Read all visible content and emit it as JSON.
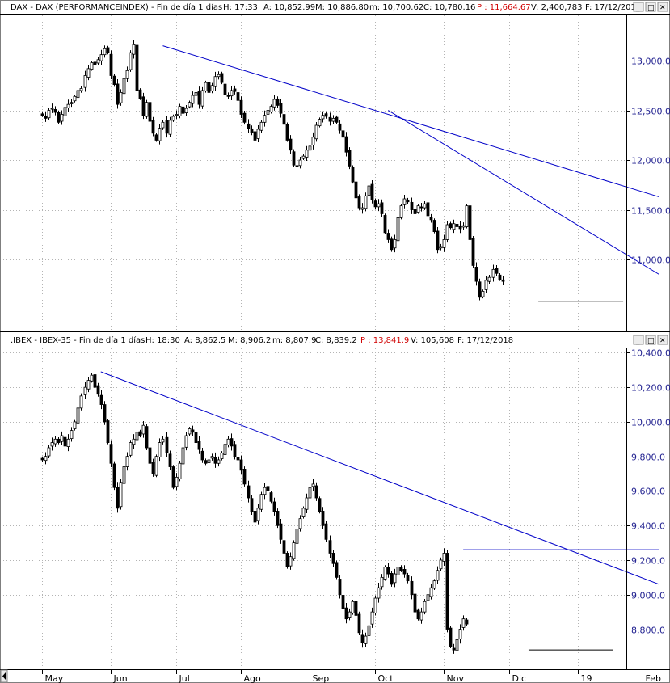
{
  "top_panel": {
    "header": {
      "title": "DAX - DAX (PERFORMANCEINDEX) - Fin de día 1 días",
      "h": "H: 17:33",
      "a": "A: 10,852.99",
      "m": "M: 10,886.80",
      "mm": "m: 10,700.62",
      "c": "C: 10,780.16",
      "p": "P : 11,664.67",
      "v": "V: 2,400,783",
      "f": "F: 17/12/201"
    }
  },
  "bottom_panel": {
    "header": {
      "title": ".IBEX - IBEX-35 - Fin de día 1 días",
      "h": "H: 18:30",
      "a": "A: 8,862.5",
      "m": "M: 8,906.2",
      "mm": "m: 8,807.9",
      "c": "C: 8,839.2",
      "p": "P : 13,841.9",
      "v": "V: 105,608",
      "f": "F: 17/12/2018"
    }
  },
  "window_buttons": {
    "minimize": "_",
    "restore": "□",
    "close": "✕"
  },
  "x_axis": {
    "months": [
      "May",
      "Jun",
      "Jul",
      "Ago",
      "Sep",
      "Oct",
      "Nov",
      "Dic",
      "19",
      "Feb"
    ],
    "month_day_index": [
      0,
      21,
      41,
      61,
      82,
      102,
      123,
      143,
      164,
      184
    ]
  },
  "colors": {
    "candle": "#000000",
    "trendline": "#0000c8",
    "axis_text": "#1f1f8f",
    "p_value": "#d00000"
  },
  "chart_data": [
    {
      "type": "candlestick",
      "title": "DAX - DAX (PERFORMANCEINDEX)",
      "ylim": [
        10350,
        13350
      ],
      "y_ticks": [
        "13,000.0",
        "12,500.0",
        "12,000.0",
        "11,500.0",
        "11,000.0"
      ],
      "y_tick_values": [
        13000,
        12500,
        12000,
        11500,
        11000
      ],
      "close_series": [
        12450,
        12420,
        12500,
        12520,
        12480,
        12380,
        12460,
        12530,
        12560,
        12580,
        12640,
        12700,
        12720,
        12850,
        12920,
        12980,
        12960,
        13010,
        13060,
        13120,
        13080,
        12850,
        12760,
        12560,
        12680,
        12820,
        12900,
        13080,
        13160,
        12700,
        12620,
        12450,
        12580,
        12390,
        12270,
        12200,
        12320,
        12380,
        12270,
        12400,
        12440,
        12460,
        12540,
        12470,
        12520,
        12580,
        12650,
        12680,
        12560,
        12700,
        12780,
        12680,
        12750,
        12840,
        12860,
        12780,
        12660,
        12640,
        12700,
        12690,
        12600,
        12460,
        12380,
        12320,
        12280,
        12200,
        12310,
        12380,
        12450,
        12500,
        12540,
        12610,
        12550,
        12470,
        12360,
        12200,
        12100,
        11950,
        11940,
        12000,
        12040,
        12100,
        12140,
        12230,
        12350,
        12410,
        12450,
        12440,
        12390,
        12420,
        12380,
        12300,
        12230,
        12080,
        11940,
        11780,
        11620,
        11520,
        11520,
        11640,
        11740,
        11600,
        11530,
        11560,
        11460,
        11270,
        11200,
        11100,
        11200,
        11420,
        11540,
        11610,
        11580,
        11500,
        11460,
        11540,
        11520,
        11560,
        11440,
        11400,
        11280,
        11100,
        11130,
        11200,
        11350,
        11320,
        11360,
        11330,
        11310,
        11340,
        11540,
        11200,
        10940,
        10780,
        10620,
        10680,
        10790,
        10820,
        10900,
        10860,
        10800,
        10780
      ],
      "trendlines": [
        {
          "x": [
            37,
            189
          ],
          "y": [
            13150,
            11630
          ]
        },
        {
          "x": [
            106,
            189
          ],
          "y": [
            12500,
            10850
          ]
        }
      ],
      "support_line": {
        "x": [
          152,
          178
        ],
        "y": 10580
      }
    },
    {
      "type": "candlestick",
      "title": ".IBEX - IBEX-35",
      "ylim": [
        8620,
        10430
      ],
      "y_ticks": [
        "10,400.0",
        "10,200.0",
        "10,000.0",
        "9,800.0",
        "9,600.0",
        "9,400.0",
        "9,200.0",
        "9,000.0",
        "8,800.0"
      ],
      "y_tick_values": [
        10400,
        10200,
        10000,
        9800,
        9600,
        9400,
        9200,
        9000,
        8800
      ],
      "close_series": [
        9780,
        9800,
        9850,
        9880,
        9900,
        9880,
        9920,
        9860,
        9900,
        9950,
        10000,
        10080,
        10150,
        10200,
        10240,
        10270,
        10200,
        10160,
        10100,
        10000,
        9880,
        9760,
        9620,
        9500,
        9650,
        9740,
        9800,
        9880,
        9900,
        9940,
        9920,
        9980,
        9850,
        9760,
        9700,
        9800,
        9880,
        9900,
        9820,
        9740,
        9620,
        9680,
        9760,
        9850,
        9920,
        9960,
        9940,
        9880,
        9840,
        9780,
        9760,
        9780,
        9800,
        9760,
        9780,
        9820,
        9870,
        9900,
        9860,
        9800,
        9780,
        9720,
        9640,
        9560,
        9480,
        9420,
        9500,
        9580,
        9620,
        9600,
        9540,
        9480,
        9400,
        9320,
        9240,
        9160,
        9220,
        9300,
        9380,
        9440,
        9500,
        9560,
        9620,
        9640,
        9560,
        9480,
        9400,
        9320,
        9240,
        9180,
        9100,
        9000,
        8920,
        8860,
        8900,
        8960,
        8880,
        8780,
        8720,
        8760,
        8820,
        8900,
        8980,
        9040,
        9100,
        9160,
        9120,
        9060,
        9120,
        9160,
        9140,
        9120,
        9080,
        9000,
        8900,
        8860,
        8900,
        8960,
        9000,
        9040,
        9080,
        9140,
        9200,
        9240,
        8800,
        8700,
        8680,
        8740,
        8800,
        8860,
        8830
      ],
      "trendlines": [
        {
          "x": [
            18,
            189
          ],
          "y": [
            10290,
            9060
          ]
        },
        {
          "x": [
            129,
            189
          ],
          "y": [
            9260,
            9260
          ]
        }
      ],
      "support_line": {
        "x": [
          149,
          175
        ],
        "y": 8680
      }
    }
  ]
}
